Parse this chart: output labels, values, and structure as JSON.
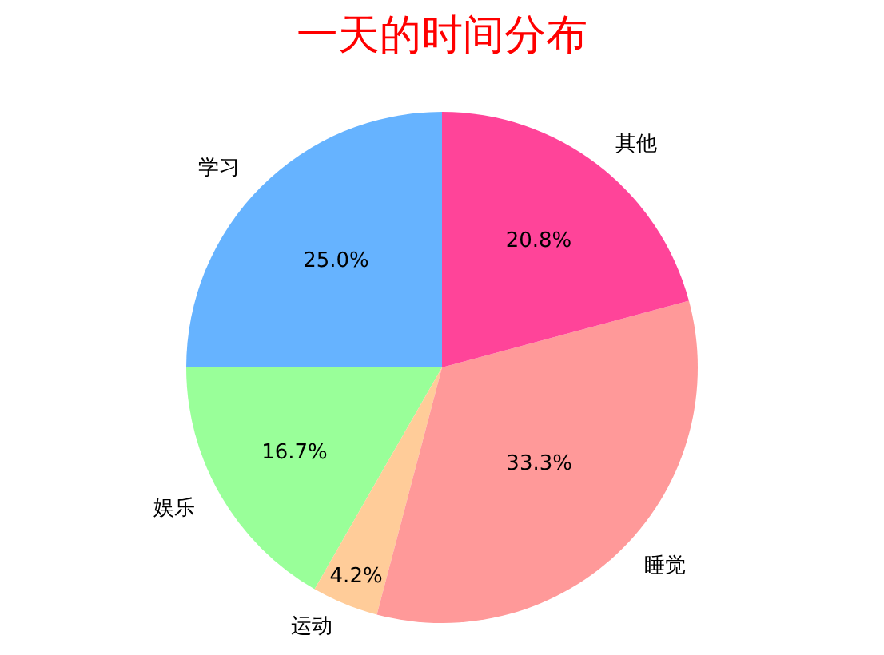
{
  "chart_data": {
    "type": "pie",
    "title": "一天的时间分布",
    "categories": [
      "学习",
      "娱乐",
      "运动",
      "睡觉",
      "其他"
    ],
    "values": [
      25.0,
      16.7,
      4.2,
      33.3,
      20.8
    ],
    "value_labels": [
      "25.0%",
      "16.7%",
      "4.2%",
      "33.3%",
      "20.8%"
    ],
    "colors": [
      "#66b3ff",
      "#99ff99",
      "#ffcc99",
      "#ff9999",
      "#ff4499"
    ]
  }
}
